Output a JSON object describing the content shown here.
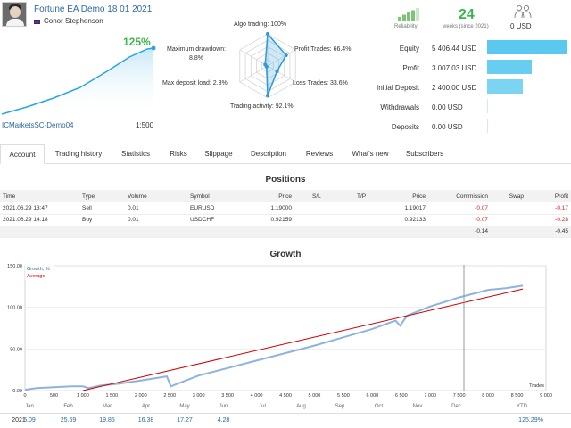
{
  "header": {
    "title": "Fortune EA Demo 18 01 2021",
    "author": "Conor Stephenson",
    "growth_pct": "125%",
    "broker": "ICMarketsSC-Demo04",
    "leverage": "1:500"
  },
  "radar": {
    "labels": {
      "algo": "Algo trading: 100%",
      "profit_trades": "Profit Trades: 66.4%",
      "loss_trades": "Loss Trades: 33.6%",
      "activity": "Trading activity: 92.1%",
      "max_load": "Max deposit load: 2.8%",
      "max_dd": "Maximum drawdown:",
      "max_dd_val": "8.8%"
    },
    "values": {
      "algo": 1.0,
      "profit_trades": 0.664,
      "loss_trades": 0.336,
      "activity": 0.921,
      "max_load": 0.028,
      "max_dd": 0.088
    }
  },
  "summary": {
    "reliability_label": "Reliability",
    "weeks_value": "24",
    "weeks_label": "weeks (since 2021)",
    "subscribers_value": "0 USD",
    "reliability_level": 0.8
  },
  "stats": [
    {
      "label": "Equity",
      "value": "5 406.44 USD",
      "level": 1.0
    },
    {
      "label": "Profit",
      "value": "3 007.03 USD",
      "level": 0.556
    },
    {
      "label": "Initial Deposit",
      "value": "2 400.00 USD",
      "level": 0.444
    },
    {
      "label": "Withdrawals",
      "value": "0.00 USD",
      "level": 0
    },
    {
      "label": "Deposits",
      "value": "0.00 USD",
      "level": 0
    }
  ],
  "tabs": [
    "Account",
    "Trading history",
    "Statistics",
    "Risks",
    "Slippage",
    "Description",
    "Reviews",
    "What's new",
    "Subscribers"
  ],
  "positions": {
    "title": "Positions",
    "headers": [
      "Time",
      "Type",
      "Volume",
      "Symbol",
      "Price",
      "S/L",
      "T/P",
      "Price",
      "Commission",
      "Swap",
      "Profit"
    ],
    "rows": [
      [
        "2021.06.29 13:47",
        "Sell",
        "0.01",
        "EURUSD",
        "1.19000",
        "",
        "",
        "1.19017",
        "-0.07",
        "",
        "-0.17"
      ],
      [
        "2021.06.29 14:18",
        "Buy",
        "0.01",
        "USDCHF",
        "0.92159",
        "",
        "",
        "0.92133",
        "-0.07",
        "",
        "-0.28"
      ]
    ],
    "totals": {
      "commission": "-0.14",
      "profit": "-0.45"
    }
  },
  "growth": {
    "title": "Growth",
    "legend_growth": "Growth, %",
    "legend_average": "Average",
    "xlabel": "Trades",
    "colors": {
      "growth": "#7aa5d6",
      "average": "#cc0000"
    }
  },
  "chart_data": {
    "type": "line",
    "title": "Growth",
    "xlabel": "Trades",
    "ylabel": "",
    "xlim": [
      0,
      9000
    ],
    "ylim": [
      0,
      150
    ],
    "x_ticks": [
      "0",
      "500",
      "1 000",
      "1 500",
      "2 000",
      "2 500",
      "3 000",
      "3 500",
      "4 000",
      "4 500",
      "5 000",
      "5 500",
      "6 000",
      "6 500",
      "7 000",
      "7 500",
      "8 000",
      "8 500",
      "9 000"
    ],
    "y_ticks": [
      "0.00",
      "50.00",
      "100.00",
      "150.00"
    ],
    "series": [
      {
        "name": "Growth, %",
        "x": [
          0,
          200,
          500,
          800,
          1000,
          1100,
          1300,
          1600,
          2000,
          2450,
          2520,
          2700,
          3000,
          3500,
          4000,
          4500,
          5000,
          5500,
          6000,
          6400,
          6480,
          6600,
          7000,
          7500,
          8000,
          8300,
          8600
        ],
        "y": [
          1,
          3,
          4,
          5,
          5,
          3,
          6,
          8,
          12,
          17,
          5,
          10,
          18,
          27,
          36,
          45,
          54,
          64,
          74,
          84,
          78,
          90,
          101,
          112,
          121,
          123,
          126
        ]
      },
      {
        "name": "Average",
        "x": [
          1000,
          8600
        ],
        "y": [
          0,
          122
        ]
      }
    ],
    "months": [
      "Jan",
      "Feb",
      "Mar",
      "Apr",
      "May",
      "Jun",
      "Jul",
      "Aug",
      "Sep",
      "Oct",
      "Nov",
      "Dec",
      "YTD"
    ],
    "year": "2021",
    "monthly": [
      "5.09",
      "25.69",
      "19.85",
      "16.38",
      "17.27",
      "4.28",
      "",
      "",
      "",
      "",
      "",
      "",
      "125.29%"
    ]
  }
}
